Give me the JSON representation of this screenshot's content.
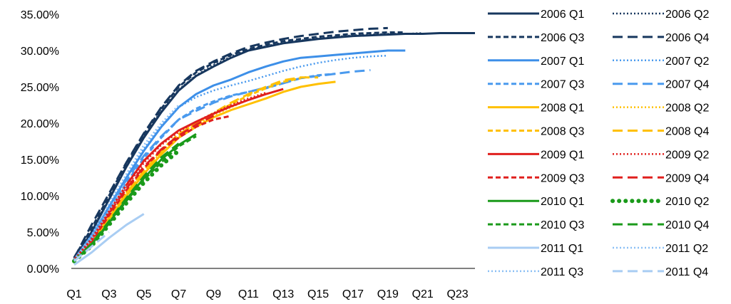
{
  "chart_data": {
    "type": "line",
    "title": "",
    "xlabel": "",
    "ylabel": "",
    "y_format": "percent_2dp",
    "ylim": [
      0,
      0.35
    ],
    "y_ticks": [
      0,
      0.05,
      0.1,
      0.15,
      0.2,
      0.25,
      0.3,
      0.35
    ],
    "y_tick_labels": [
      "0.00%",
      "5.00%",
      "10.00%",
      "15.00%",
      "20.00%",
      "25.00%",
      "30.00%",
      "35.00%"
    ],
    "x_categories": [
      "Q1",
      "Q2",
      "Q3",
      "Q4",
      "Q5",
      "Q6",
      "Q7",
      "Q8",
      "Q9",
      "Q10",
      "Q11",
      "Q12",
      "Q13",
      "Q14",
      "Q15",
      "Q16",
      "Q17",
      "Q18",
      "Q19",
      "Q20",
      "Q21",
      "Q22",
      "Q23",
      "Q24"
    ],
    "x_tick_labels": [
      "Q1",
      "Q3",
      "Q5",
      "Q7",
      "Q9",
      "Q11",
      "Q13",
      "Q15",
      "Q17",
      "Q19",
      "Q21",
      "Q23"
    ],
    "legend_position": "right",
    "grid": false,
    "series": [
      {
        "name": "2006 Q1",
        "color": "#17375e",
        "style": "solid",
        "values": [
          0.012,
          0.05,
          0.095,
          0.14,
          0.18,
          0.215,
          0.245,
          0.265,
          0.278,
          0.29,
          0.3,
          0.305,
          0.31,
          0.313,
          0.316,
          0.318,
          0.32,
          0.321,
          0.322,
          0.323,
          0.323,
          0.324,
          0.324,
          0.324
        ]
      },
      {
        "name": "2006 Q2",
        "color": "#17375e",
        "style": "dotted",
        "values": [
          0.013,
          0.052,
          0.097,
          0.142,
          0.182,
          0.217,
          0.246,
          0.266,
          0.28,
          0.292,
          0.301,
          0.306,
          0.311,
          0.314,
          0.317,
          0.319,
          0.321,
          0.322,
          0.323,
          0.323,
          0.324
        ]
      },
      {
        "name": "2006 Q3",
        "color": "#17375e",
        "style": "short-dash",
        "values": [
          0.015,
          0.055,
          0.1,
          0.145,
          0.185,
          0.22,
          0.25,
          0.27,
          0.283,
          0.294,
          0.302,
          0.308,
          0.313,
          0.316,
          0.319,
          0.321,
          0.323,
          0.324,
          0.325,
          0.325
        ]
      },
      {
        "name": "2006 Q4",
        "color": "#17375e",
        "style": "long-dash",
        "values": [
          0.014,
          0.06,
          0.103,
          0.146,
          0.186,
          0.222,
          0.252,
          0.272,
          0.285,
          0.296,
          0.305,
          0.311,
          0.316,
          0.32,
          0.323,
          0.326,
          0.328,
          0.33,
          0.331
        ]
      },
      {
        "name": "2007 Q1",
        "color": "#3d8fe8",
        "style": "solid",
        "values": [
          0.012,
          0.045,
          0.085,
          0.125,
          0.162,
          0.195,
          0.222,
          0.24,
          0.252,
          0.26,
          0.27,
          0.278,
          0.285,
          0.29,
          0.292,
          0.294,
          0.296,
          0.298,
          0.3,
          0.3
        ]
      },
      {
        "name": "2007 Q2",
        "color": "#4a9aee",
        "style": "dotted",
        "values": [
          0.012,
          0.046,
          0.088,
          0.128,
          0.165,
          0.197,
          0.222,
          0.236,
          0.245,
          0.252,
          0.258,
          0.265,
          0.272,
          0.278,
          0.283,
          0.287,
          0.29,
          0.292,
          0.293
        ]
      },
      {
        "name": "2007 Q3",
        "color": "#4a9aee",
        "style": "short-dash",
        "values": [
          0.012,
          0.042,
          0.08,
          0.118,
          0.152,
          0.18,
          0.205,
          0.22,
          0.23,
          0.238,
          0.243,
          0.248,
          0.255,
          0.262,
          0.266,
          0.268
        ]
      },
      {
        "name": "2007 Q4",
        "color": "#4a9aee",
        "style": "long-dash",
        "values": [
          0.012,
          0.045,
          0.085,
          0.122,
          0.155,
          0.182,
          0.205,
          0.217,
          0.228,
          0.237,
          0.243,
          0.249,
          0.255,
          0.262,
          0.265,
          0.268,
          0.271,
          0.273
        ]
      },
      {
        "name": "2008 Q1",
        "color": "#ffc000",
        "style": "solid",
        "values": [
          0.01,
          0.035,
          0.068,
          0.1,
          0.13,
          0.157,
          0.18,
          0.195,
          0.208,
          0.218,
          0.226,
          0.234,
          0.243,
          0.25,
          0.254,
          0.257
        ]
      },
      {
        "name": "2008 Q2",
        "color": "#ffc000",
        "style": "dotted",
        "values": [
          0.01,
          0.036,
          0.069,
          0.103,
          0.133,
          0.16,
          0.183,
          0.198,
          0.211,
          0.222,
          0.232,
          0.241
        ]
      },
      {
        "name": "2008 Q3",
        "color": "#ffc000",
        "style": "short-dash",
        "values": [
          0.01,
          0.037,
          0.071,
          0.105,
          0.135,
          0.163,
          0.185,
          0.2,
          0.213,
          0.226,
          0.238,
          0.248,
          0.257,
          0.262
        ]
      },
      {
        "name": "2008 Q4",
        "color": "#ffc000",
        "style": "long-dash",
        "values": [
          0.01,
          0.036,
          0.07,
          0.104,
          0.134,
          0.161,
          0.184,
          0.2,
          0.214,
          0.228,
          0.24,
          0.25,
          0.259,
          0.263,
          0.263
        ]
      },
      {
        "name": "2009 Q1",
        "color": "#e0201e",
        "style": "solid",
        "values": [
          0.012,
          0.04,
          0.078,
          0.115,
          0.148,
          0.172,
          0.19,
          0.202,
          0.213,
          0.223,
          0.232,
          0.24,
          0.247
        ]
      },
      {
        "name": "2009 Q2",
        "color": "#e0201e",
        "style": "dotted",
        "values": [
          0.012,
          0.038,
          0.075,
          0.112,
          0.145,
          0.17,
          0.188,
          0.202,
          0.214,
          0.225,
          0.234,
          0.242
        ]
      },
      {
        "name": "2009 Q3",
        "color": "#e0201e",
        "style": "short-dash",
        "values": [
          0.012,
          0.037,
          0.073,
          0.108,
          0.138,
          0.163,
          0.18,
          0.195,
          0.205,
          0.21
        ]
      },
      {
        "name": "2009 Q4",
        "color": "#e0201e",
        "style": "long-dash",
        "values": [
          0.012,
          0.04,
          0.076,
          0.11,
          0.14,
          0.164,
          0.183,
          0.198,
          0.21
        ]
      },
      {
        "name": "2010 Q1",
        "color": "#1a9a1a",
        "style": "solid",
        "values": [
          0.01,
          0.033,
          0.063,
          0.095,
          0.124,
          0.15,
          0.17,
          0.185
        ]
      },
      {
        "name": "2010 Q2",
        "color": "#1a9a1a",
        "style": "round-dot",
        "values": [
          0.01,
          0.031,
          0.06,
          0.09,
          0.118,
          0.142,
          0.162
        ]
      },
      {
        "name": "2010 Q3",
        "color": "#1a9a1a",
        "style": "short-dash",
        "values": [
          0.01,
          0.032,
          0.062,
          0.093,
          0.122,
          0.146,
          0.168,
          0.182
        ]
      },
      {
        "name": "2010 Q4",
        "color": "#1a9a1a",
        "style": "long-dash",
        "values": [
          0.01,
          0.034,
          0.065,
          0.097,
          0.127,
          0.153,
          0.172
        ]
      },
      {
        "name": "2011 Q1",
        "color": "#a9cdf3",
        "style": "solid",
        "values": [
          0.005,
          0.022,
          0.042,
          0.06,
          0.075
        ]
      },
      {
        "name": "2011 Q2",
        "color": "#8cc0f5",
        "style": "dotted",
        "values": [
          0.012,
          0.045,
          0.09,
          0.13,
          0.17,
          0.2,
          0.225
        ]
      },
      {
        "name": "2011 Q3",
        "color": "#8cc0f5",
        "style": "dotted",
        "values": [
          0.012,
          0.04,
          0.08,
          0.115
        ]
      },
      {
        "name": "2011 Q4",
        "color": "#a9cdf3",
        "style": "long-dash",
        "values": [
          0.01,
          0.03,
          0.05
        ]
      }
    ]
  }
}
